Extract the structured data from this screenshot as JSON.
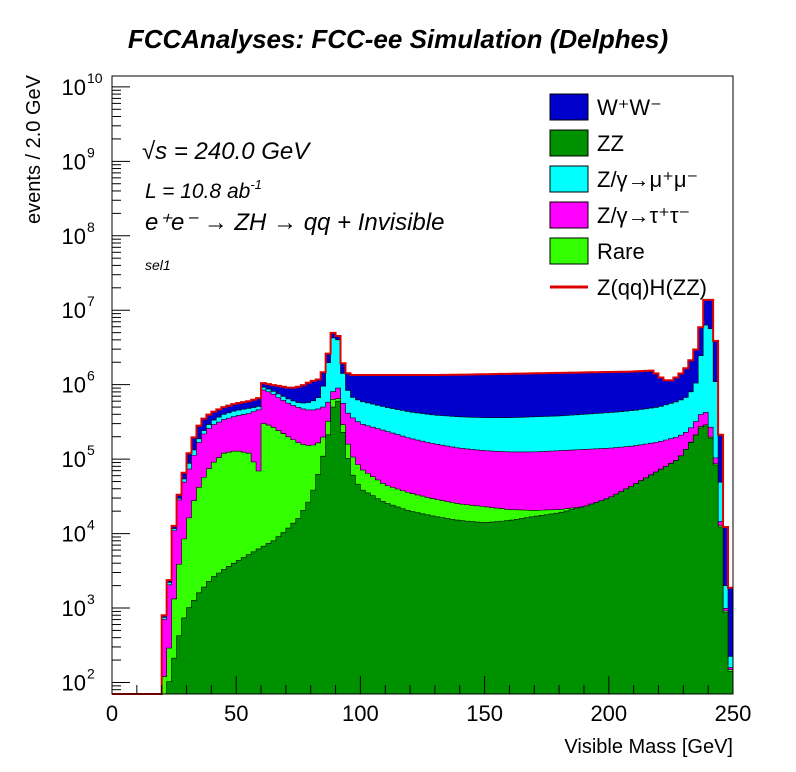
{
  "chart_data": {
    "type": "stacked-histogram",
    "title": "FCCAnalyses: FCC-ee Simulation (Delphes)",
    "xlabel": "Visible Mass [GeV]",
    "ylabel": "events / 2.0 GeV",
    "xlim": [
      0,
      250
    ],
    "ylim": [
      70,
      14000000000
    ],
    "yscale": "log",
    "x_ticks": [
      "0",
      "50",
      "100",
      "150",
      "200",
      "250"
    ],
    "y_ticks": [
      {
        "base": "10",
        "exp": "2"
      },
      {
        "base": "10",
        "exp": "3"
      },
      {
        "base": "10",
        "exp": "4"
      },
      {
        "base": "10",
        "exp": "5"
      },
      {
        "base": "10",
        "exp": "6"
      },
      {
        "base": "10",
        "exp": "7"
      },
      {
        "base": "10",
        "exp": "8"
      },
      {
        "base": "10",
        "exp": "9"
      },
      {
        "base": "10",
        "exp": "10"
      }
    ],
    "annotations": {
      "sqrt_s_symbol": "√s",
      "sqrt_s_value": " = 240.0 GeV",
      "lumi_text": "L = 10.8 ab",
      "lumi_exp": "-1",
      "process_text": "e⁺e⁻ → ZH → qq + Invisible",
      "selection": "sel1"
    },
    "bin_width": 2.0,
    "stack_order_bottom_to_top": [
      "ZZ",
      "Rare",
      "Z/γ→τ⁺τ⁻",
      "Z/γ→μ⁺μ⁻",
      "W⁺W⁻"
    ],
    "series": [
      {
        "name": "ZZ",
        "color": "#009100",
        "points": [
          [
            20,
            0
          ],
          [
            22,
            70
          ],
          [
            24,
            150
          ],
          [
            26,
            300
          ],
          [
            28,
            600
          ],
          [
            30,
            900
          ],
          [
            35,
            1600
          ],
          [
            40,
            2500
          ],
          [
            45,
            3300
          ],
          [
            50,
            4200
          ],
          [
            55,
            5200
          ],
          [
            60,
            6500
          ],
          [
            65,
            8000
          ],
          [
            70,
            11000
          ],
          [
            75,
            16000
          ],
          [
            80,
            30000
          ],
          [
            84,
            80000
          ],
          [
            86,
            150000
          ],
          [
            88,
            300000
          ],
          [
            89,
            500000
          ],
          [
            90,
            700000
          ],
          [
            91,
            600000
          ],
          [
            92,
            350000
          ],
          [
            94,
            150000
          ],
          [
            96,
            70000
          ],
          [
            100,
            40000
          ],
          [
            110,
            26000
          ],
          [
            120,
            20000
          ],
          [
            130,
            17000
          ],
          [
            140,
            15000
          ],
          [
            150,
            14000
          ],
          [
            160,
            15000
          ],
          [
            170,
            17000
          ],
          [
            180,
            19000
          ],
          [
            190,
            23000
          ],
          [
            200,
            30000
          ],
          [
            210,
            45000
          ],
          [
            220,
            70000
          ],
          [
            228,
            100000
          ],
          [
            232,
            150000
          ],
          [
            236,
            230000
          ],
          [
            238,
            300000
          ],
          [
            240,
            260000
          ],
          [
            242,
            140000
          ],
          [
            244,
            50000
          ],
          [
            246,
            3000
          ],
          [
            248,
            250
          ],
          [
            250,
            80
          ]
        ]
      },
      {
        "name": "Rare",
        "color": "#33ff00",
        "points": [
          [
            20,
            0
          ],
          [
            22,
            120
          ],
          [
            24,
            700
          ],
          [
            26,
            2500
          ],
          [
            28,
            6000
          ],
          [
            30,
            12000
          ],
          [
            32,
            22000
          ],
          [
            34,
            35000
          ],
          [
            36,
            50000
          ],
          [
            40,
            85000
          ],
          [
            45,
            120000
          ],
          [
            50,
            130000
          ],
          [
            55,
            120000
          ],
          [
            58,
            80000
          ],
          [
            60,
            60000
          ],
          [
            61,
            300000
          ],
          [
            64,
            280000
          ],
          [
            68,
            230000
          ],
          [
            72,
            190000
          ],
          [
            76,
            160000
          ],
          [
            80,
            150000
          ],
          [
            84,
            170000
          ],
          [
            86,
            230000
          ],
          [
            88,
            450000
          ],
          [
            90,
            900000
          ],
          [
            91,
            650000
          ],
          [
            92,
            400000
          ],
          [
            94,
            210000
          ],
          [
            96,
            120000
          ],
          [
            100,
            75000
          ],
          [
            110,
            45000
          ],
          [
            120,
            35000
          ],
          [
            130,
            29000
          ],
          [
            140,
            25000
          ],
          [
            150,
            23000
          ],
          [
            160,
            21000
          ],
          [
            170,
            20500
          ],
          [
            180,
            21000
          ],
          [
            190,
            23000
          ],
          [
            200,
            30000
          ],
          [
            210,
            45000
          ],
          [
            220,
            70000
          ],
          [
            228,
            100000
          ],
          [
            232,
            150000
          ],
          [
            236,
            240000
          ],
          [
            238,
            310000
          ],
          [
            240,
            270000
          ],
          [
            242,
            145000
          ],
          [
            244,
            52000
          ],
          [
            246,
            3200
          ],
          [
            248,
            260
          ],
          [
            250,
            85
          ]
        ]
      },
      {
        "name": "Z/γ→τ⁺τ⁻",
        "color": "#ff00ff",
        "points": [
          [
            20,
            0
          ],
          [
            22,
            700
          ],
          [
            24,
            6000
          ],
          [
            26,
            20000
          ],
          [
            28,
            40000
          ],
          [
            30,
            60000
          ],
          [
            32,
            90000
          ],
          [
            34,
            140000
          ],
          [
            36,
            200000
          ],
          [
            40,
            280000
          ],
          [
            45,
            340000
          ],
          [
            50,
            380000
          ],
          [
            55,
            410000
          ],
          [
            58,
            450000
          ],
          [
            60,
            470000
          ],
          [
            61,
            850000
          ],
          [
            64,
            780000
          ],
          [
            68,
            640000
          ],
          [
            72,
            540000
          ],
          [
            76,
            480000
          ],
          [
            80,
            450000
          ],
          [
            84,
            480000
          ],
          [
            86,
            520000
          ],
          [
            88,
            650000
          ],
          [
            90,
            1000000
          ],
          [
            91,
            900000
          ],
          [
            92,
            700000
          ],
          [
            94,
            450000
          ],
          [
            96,
            380000
          ],
          [
            100,
            300000
          ],
          [
            110,
            240000
          ],
          [
            120,
            190000
          ],
          [
            130,
            160000
          ],
          [
            140,
            140000
          ],
          [
            150,
            130000
          ],
          [
            160,
            125000
          ],
          [
            170,
            125000
          ],
          [
            180,
            130000
          ],
          [
            190,
            135000
          ],
          [
            200,
            140000
          ],
          [
            210,
            150000
          ],
          [
            220,
            170000
          ],
          [
            228,
            200000
          ],
          [
            232,
            240000
          ],
          [
            236,
            350000
          ],
          [
            238,
            450000
          ],
          [
            240,
            400000
          ],
          [
            242,
            180000
          ],
          [
            244,
            60000
          ],
          [
            246,
            3500
          ],
          [
            248,
            280
          ],
          [
            250,
            90
          ]
        ]
      },
      {
        "name": "Z/γ→μ⁺μ⁻",
        "color": "#00ffff",
        "points": [
          [
            20,
            0
          ],
          [
            22,
            750
          ],
          [
            24,
            6500
          ],
          [
            26,
            21000
          ],
          [
            28,
            42000
          ],
          [
            30,
            70000
          ],
          [
            32,
            110000
          ],
          [
            34,
            160000
          ],
          [
            36,
            220000
          ],
          [
            40,
            320000
          ],
          [
            45,
            400000
          ],
          [
            50,
            450000
          ],
          [
            55,
            480000
          ],
          [
            58,
            500000
          ],
          [
            60,
            520000
          ],
          [
            61,
            920000
          ],
          [
            64,
            850000
          ],
          [
            68,
            720000
          ],
          [
            72,
            620000
          ],
          [
            76,
            560000
          ],
          [
            80,
            580000
          ],
          [
            84,
            700000
          ],
          [
            86,
            1300000
          ],
          [
            88,
            3000000
          ],
          [
            90,
            6000000
          ],
          [
            91,
            4000000
          ],
          [
            92,
            2000000
          ],
          [
            94,
            1000000
          ],
          [
            96,
            700000
          ],
          [
            100,
            600000
          ],
          [
            110,
            500000
          ],
          [
            120,
            430000
          ],
          [
            130,
            390000
          ],
          [
            140,
            370000
          ],
          [
            150,
            360000
          ],
          [
            160,
            360000
          ],
          [
            170,
            370000
          ],
          [
            180,
            380000
          ],
          [
            190,
            400000
          ],
          [
            200,
            420000
          ],
          [
            210,
            450000
          ],
          [
            220,
            500000
          ],
          [
            228,
            600000
          ],
          [
            232,
            700000
          ],
          [
            236,
            1200000
          ],
          [
            238,
            5000000
          ],
          [
            240,
            8000000
          ],
          [
            242,
            4000000
          ],
          [
            244,
            300000
          ],
          [
            246,
            8000
          ],
          [
            248,
            500
          ],
          [
            250,
            100
          ]
        ]
      },
      {
        "name": "W⁺W⁻",
        "color": "#0000cc",
        "points": [
          [
            20,
            0
          ],
          [
            22,
            800
          ],
          [
            24,
            7000
          ],
          [
            26,
            23000
          ],
          [
            28,
            48000
          ],
          [
            30,
            90000
          ],
          [
            32,
            160000
          ],
          [
            34,
            240000
          ],
          [
            36,
            330000
          ],
          [
            40,
            420000
          ],
          [
            45,
            500000
          ],
          [
            50,
            560000
          ],
          [
            55,
            600000
          ],
          [
            58,
            640000
          ],
          [
            60,
            680000
          ],
          [
            61,
            1050000
          ],
          [
            64,
            1000000
          ],
          [
            68,
            950000
          ],
          [
            72,
            900000
          ],
          [
            76,
            950000
          ],
          [
            80,
            1100000
          ],
          [
            84,
            1200000
          ],
          [
            86,
            1800000
          ],
          [
            88,
            3800000
          ],
          [
            90,
            6500000
          ],
          [
            91,
            4500000
          ],
          [
            92,
            2500000
          ],
          [
            94,
            1500000
          ],
          [
            96,
            1350000
          ],
          [
            100,
            1350000
          ],
          [
            110,
            1350000
          ],
          [
            120,
            1350000
          ],
          [
            130,
            1350000
          ],
          [
            140,
            1360000
          ],
          [
            150,
            1380000
          ],
          [
            160,
            1400000
          ],
          [
            170,
            1420000
          ],
          [
            180,
            1440000
          ],
          [
            190,
            1460000
          ],
          [
            200,
            1480000
          ],
          [
            210,
            1500000
          ],
          [
            218,
            1550000
          ],
          [
            220,
            1300000
          ],
          [
            224,
            1100000
          ],
          [
            228,
            1300000
          ],
          [
            232,
            1800000
          ],
          [
            236,
            3500000
          ],
          [
            238,
            10000000
          ],
          [
            240,
            19000000
          ],
          [
            242,
            10000000
          ],
          [
            244,
            1500000
          ],
          [
            246,
            30000
          ],
          [
            248,
            5000
          ],
          [
            250,
            700
          ]
        ]
      },
      {
        "name": "Z(qq)H(ZZ)",
        "color": "#dd0000",
        "style": "line"
      }
    ]
  }
}
